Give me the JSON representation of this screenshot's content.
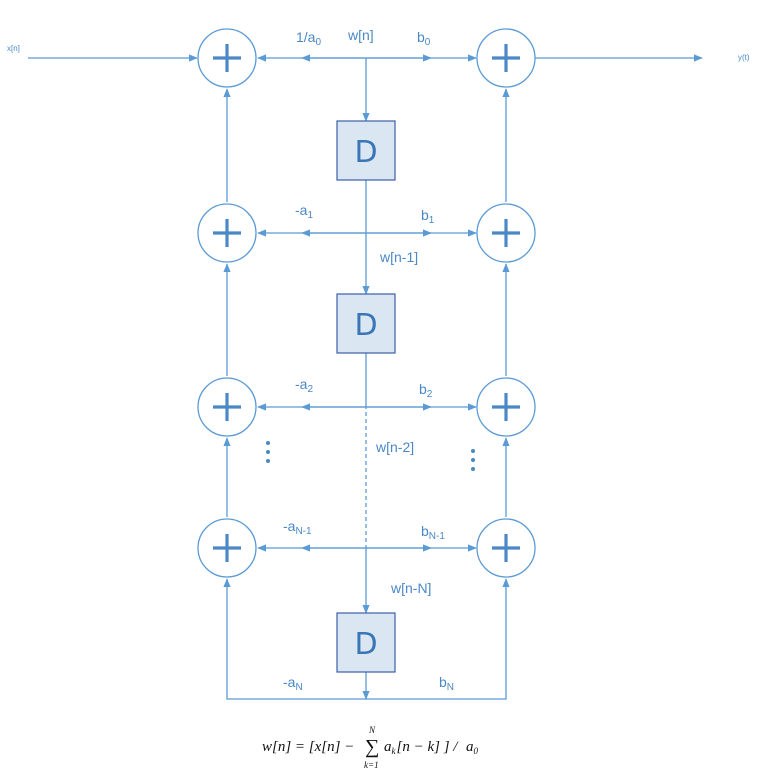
{
  "io": {
    "input": "x[n]",
    "output": "y(t)"
  },
  "delay_label": "D",
  "signals": {
    "w0": "w[n]",
    "w1": "w[n-1]",
    "w2": "w[n-2]",
    "wN": "w[n-N]"
  },
  "coefficients": {
    "inv_a0": {
      "base": "1/a",
      "sub": "0"
    },
    "a1": {
      "base": "-a",
      "sub": "1"
    },
    "a2": {
      "base": "-a",
      "sub": "2"
    },
    "aN1": {
      "base": "-a",
      "sub": "N-1"
    },
    "aN": {
      "base": "-a",
      "sub": "N"
    },
    "b0": {
      "base": "b",
      "sub": "0"
    },
    "b1": {
      "base": "b",
      "sub": "1"
    },
    "b2": {
      "base": "b",
      "sub": "2"
    },
    "bN1": {
      "base": "b",
      "sub": "N-1"
    },
    "bN": {
      "base": "b",
      "sub": "N"
    }
  },
  "equation": {
    "lhs": "w[n] = [x[n] −",
    "sum_symbol": "∑",
    "sum_upper": "N",
    "sum_lower": "k=1",
    "sum_term": "a",
    "sum_term_sub": "k",
    "sum_term_rest": "[n − k] ] /",
    "divisor": "a",
    "divisor_sub": "0"
  }
}
